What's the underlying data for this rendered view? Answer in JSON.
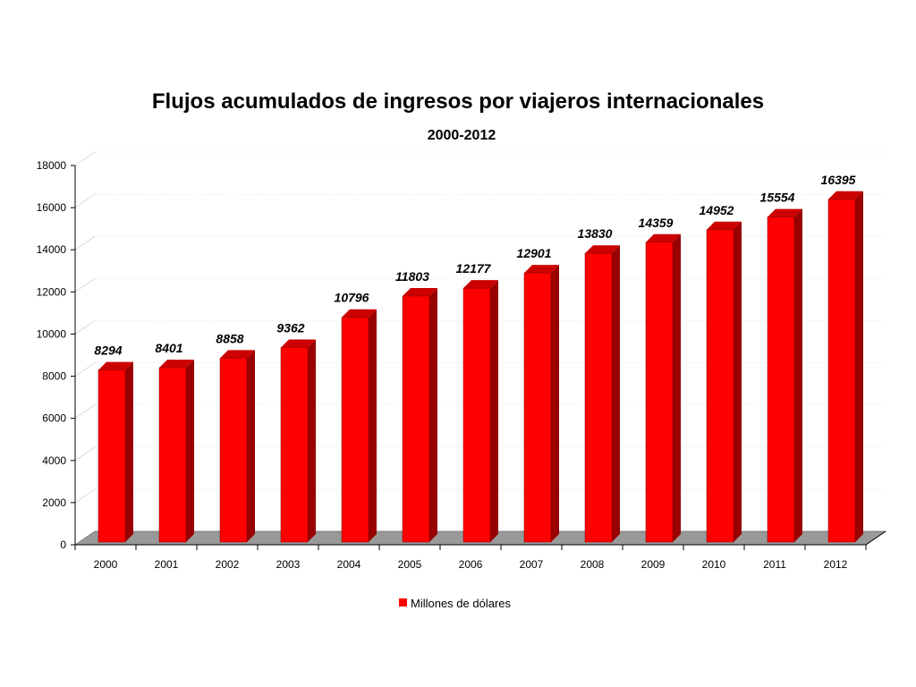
{
  "chart_data": {
    "type": "bar",
    "title": "Flujos acumulados de ingresos por viajeros internacionales",
    "subtitle": "2000-2012",
    "categories": [
      "2000",
      "2001",
      "2002",
      "2003",
      "2004",
      "2005",
      "2006",
      "2007",
      "2008",
      "2009",
      "2010",
      "2011",
      "2012"
    ],
    "series": [
      {
        "name": "Millones de dólares",
        "color": "#ff0000",
        "values": [
          8294,
          8401,
          8858,
          9362,
          10796,
          11803,
          12177,
          12901,
          13830,
          14359,
          14952,
          15554,
          16395
        ]
      }
    ],
    "ylim": [
      0,
      18000
    ],
    "yticks": [
      0,
      2000,
      4000,
      6000,
      8000,
      10000,
      12000,
      14000,
      16000,
      18000
    ],
    "xlabel": "",
    "ylabel": "",
    "grid": true,
    "legend_position": "bottom",
    "floor_color": "#999999"
  }
}
